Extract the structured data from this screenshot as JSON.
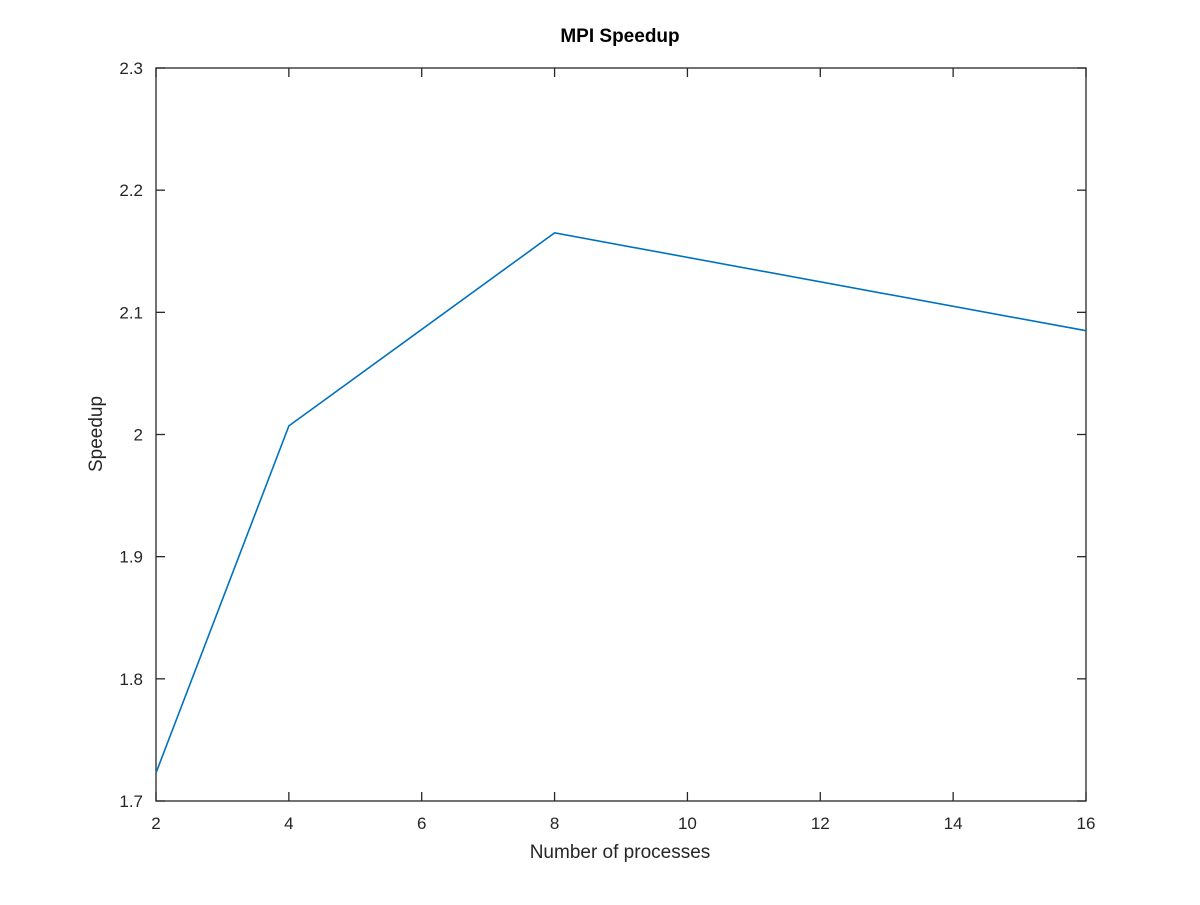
{
  "chart_data": {
    "type": "line",
    "title": "MPI Speedup",
    "xlabel": "Number of processes",
    "ylabel": "Speedup",
    "xlim": [
      2,
      16
    ],
    "ylim": [
      1.7,
      2.3
    ],
    "x_ticks": [
      2,
      4,
      6,
      8,
      10,
      12,
      14,
      16
    ],
    "x_tick_labels": [
      "2",
      "4",
      "6",
      "8",
      "10",
      "12",
      "14",
      "16"
    ],
    "y_ticks": [
      1.7,
      1.8,
      1.9,
      2.0,
      2.1,
      2.2,
      2.3
    ],
    "y_tick_labels": [
      "1.7",
      "1.8",
      "1.9",
      "2",
      "2.1",
      "2.2",
      "2.3"
    ],
    "grid": false,
    "legend": "none",
    "series": [
      {
        "x": [
          2,
          4,
          8,
          16
        ],
        "y": [
          1.723,
          2.007,
          2.165,
          2.085
        ],
        "color": "#0072bd"
      }
    ]
  },
  "colors": {
    "axes": "#262626",
    "background": "#ffffff"
  }
}
